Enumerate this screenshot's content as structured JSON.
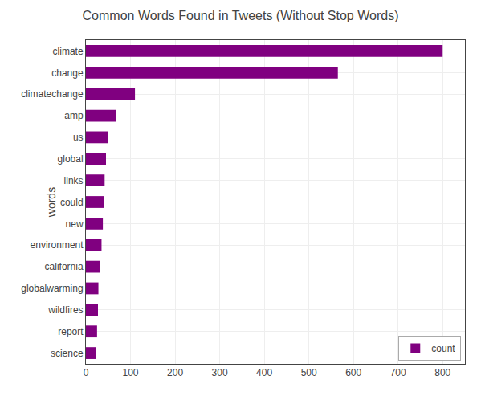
{
  "chart_data": {
    "type": "bar",
    "orientation": "horizontal",
    "title": "Common Words Found in Tweets (Without Stop Words)",
    "ylabel": "words",
    "categories": [
      "science",
      "report",
      "wildfires",
      "globalwarming",
      "california",
      "environment",
      "new",
      "could",
      "links",
      "global",
      "us",
      "amp",
      "climatechange",
      "change",
      "climate"
    ],
    "series": [
      {
        "name": "count",
        "color": "#800080",
        "values": [
          22,
          25,
          27,
          28,
          32,
          35,
          38,
          40,
          42,
          45,
          50,
          68,
          110,
          565,
          800
        ]
      }
    ],
    "xlim": [
      0,
      850
    ],
    "xticks": [
      0,
      100,
      200,
      300,
      400,
      500,
      600,
      700,
      800
    ],
    "grid": true,
    "legend": "lower right"
  }
}
